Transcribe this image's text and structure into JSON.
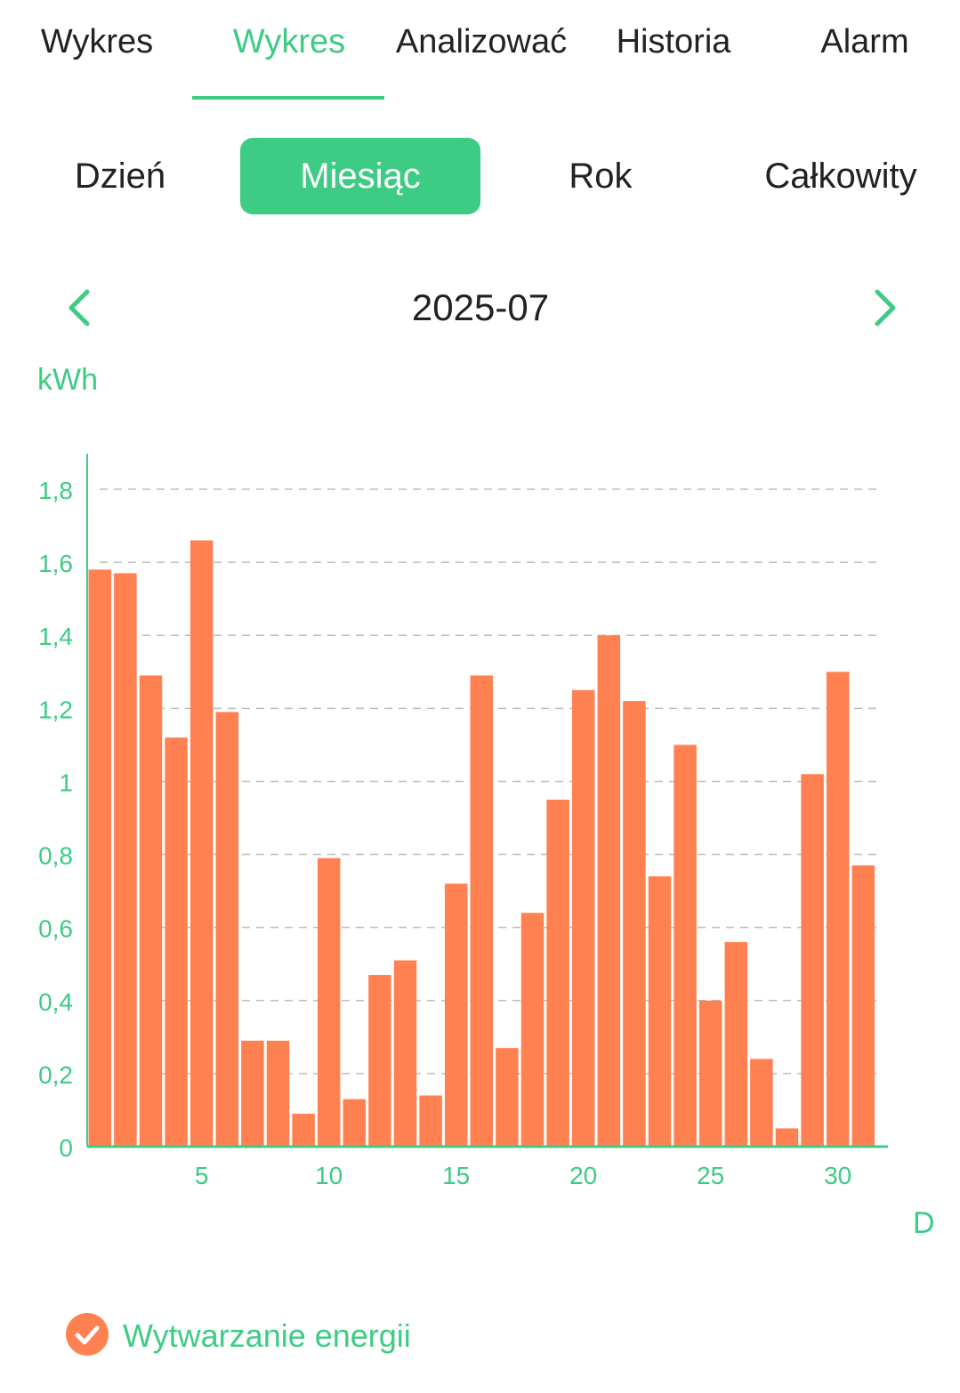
{
  "tabs": [
    {
      "label": "Wykres",
      "active": false
    },
    {
      "label": "Wykres",
      "active": true
    },
    {
      "label": "Analizować",
      "active": false
    },
    {
      "label": "Historia",
      "active": false
    },
    {
      "label": "Alarm",
      "active": false
    }
  ],
  "periods": [
    {
      "label": "Dzień",
      "active": false
    },
    {
      "label": "Miesiąc",
      "active": true
    },
    {
      "label": "Rok",
      "active": false
    },
    {
      "label": "Całkowity",
      "active": false
    }
  ],
  "navigator": {
    "period": "2025-07",
    "prev_icon": "chevron-left-icon",
    "next_icon": "chevron-right-icon"
  },
  "colors": {
    "accent": "#3ecb84",
    "bar": "#ff8152",
    "grid": "#bdbdbd"
  },
  "legend": {
    "label": "Wytwarzanie energii",
    "icon": "check-circle-icon",
    "checked": true
  },
  "chart_data": {
    "type": "bar",
    "ylabel": "kWh",
    "xlabel": "D",
    "ylim": [
      0,
      1.9
    ],
    "yticks": [
      "0",
      "0,2",
      "0,4",
      "0,6",
      "0,8",
      "1",
      "1,2",
      "1,4",
      "1,6",
      "1,8"
    ],
    "xticks": [
      "5",
      "10",
      "15",
      "20",
      "25",
      "30"
    ],
    "grid": true,
    "legend_position": "bottom-left",
    "categories": [
      1,
      2,
      3,
      4,
      5,
      6,
      7,
      8,
      9,
      10,
      11,
      12,
      13,
      14,
      15,
      16,
      17,
      18,
      19,
      20,
      21,
      22,
      23,
      24,
      25,
      26,
      27,
      28,
      29,
      30,
      31
    ],
    "series": [
      {
        "name": "Wytwarzanie energii",
        "values": [
          1.58,
          1.57,
          1.29,
          1.12,
          1.66,
          1.19,
          0.29,
          0.29,
          0.09,
          0.79,
          0.13,
          0.47,
          0.51,
          0.14,
          0.72,
          1.29,
          0.27,
          0.64,
          0.95,
          1.25,
          1.4,
          1.22,
          0.74,
          1.1,
          0.4,
          0.56,
          0.24,
          0.05,
          1.02,
          1.3,
          0.77
        ]
      }
    ]
  }
}
